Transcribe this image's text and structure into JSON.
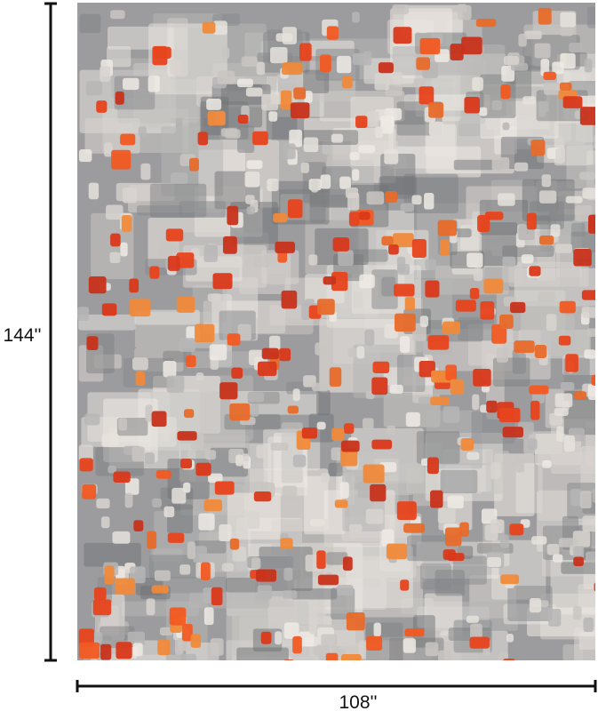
{
  "dimensions": {
    "height_label": "144''",
    "width_label": "108''"
  }
}
